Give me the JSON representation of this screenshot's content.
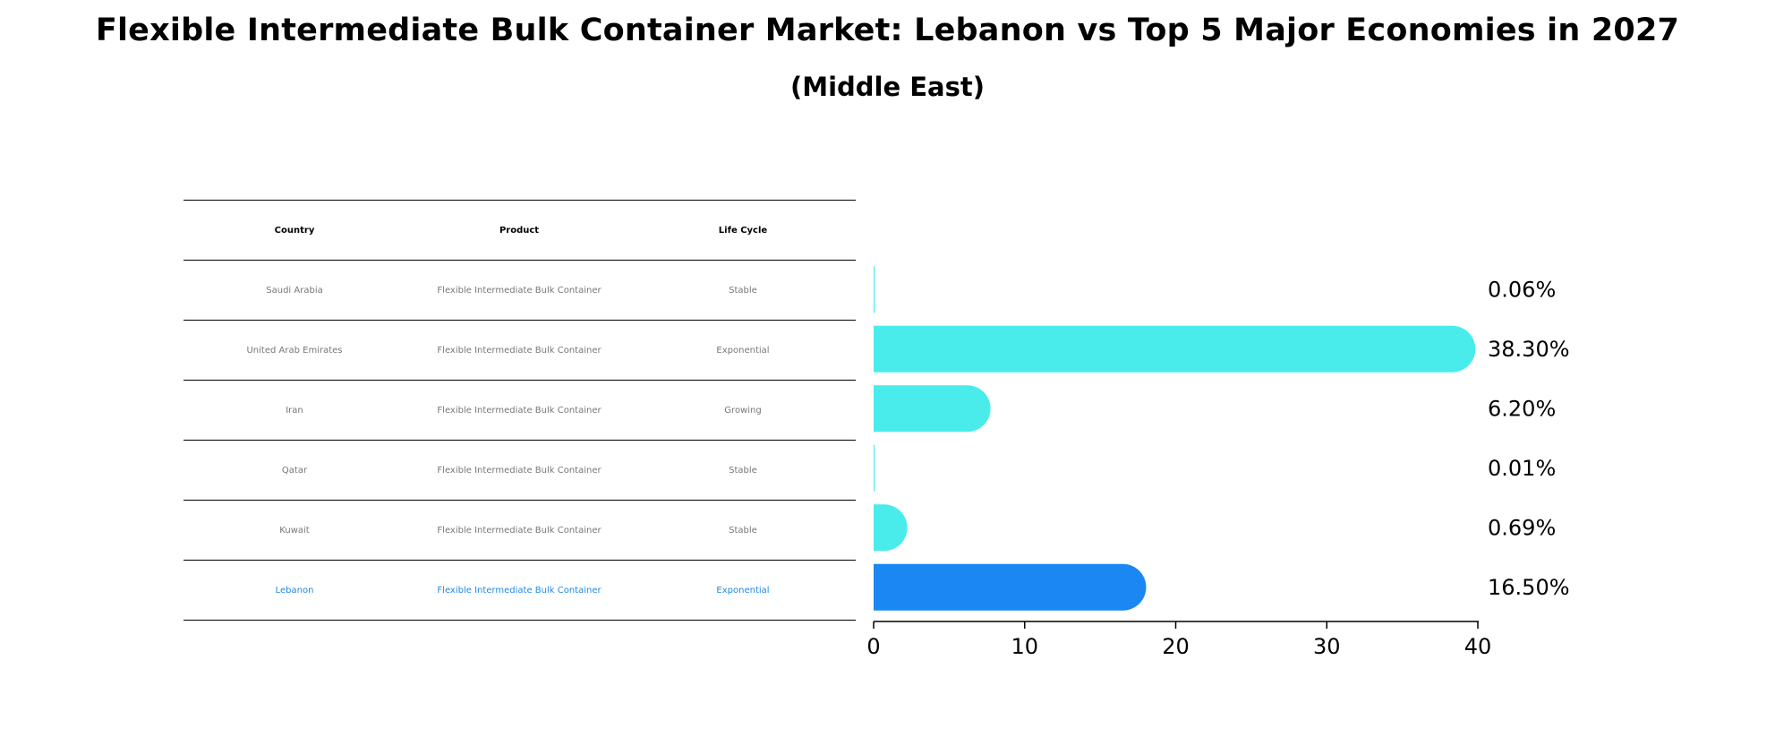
{
  "title": "Flexible Intermediate Bulk Container Market: Lebanon vs Top 5 Major Economies in 2027",
  "subtitle": "(Middle East)",
  "table": {
    "headers": [
      "Country",
      "Product",
      "Life Cycle"
    ],
    "rows": [
      {
        "country": "Saudi Arabia",
        "product": "Flexible Intermediate Bulk Container",
        "life_cycle": "Stable"
      },
      {
        "country": "United Arab Emirates",
        "product": "Flexible Intermediate Bulk Container",
        "life_cycle": "Exponential"
      },
      {
        "country": "Iran",
        "product": "Flexible Intermediate Bulk Container",
        "life_cycle": "Growing"
      },
      {
        "country": "Qatar",
        "product": "Flexible Intermediate Bulk Container",
        "life_cycle": "Stable"
      },
      {
        "country": "Kuwait",
        "product": "Flexible Intermediate Bulk Container",
        "life_cycle": "Stable"
      },
      {
        "country": "Lebanon",
        "product": "Flexible Intermediate Bulk Container",
        "life_cycle": "Exponential"
      }
    ]
  },
  "colors": {
    "bar": "#4aeceb",
    "highlight": "#1a87f2",
    "highlight_text": "#1f8ae6",
    "table_text": "#777777"
  },
  "chart_data": {
    "type": "bar",
    "orientation": "horizontal",
    "categories": [
      "Saudi Arabia",
      "United Arab Emirates",
      "Iran",
      "Qatar",
      "Kuwait",
      "Lebanon"
    ],
    "values": [
      0.06,
      38.3,
      6.2,
      0.01,
      0.69,
      16.5
    ],
    "value_labels": [
      "0.06%",
      "38.30%",
      "6.20%",
      "0.01%",
      "0.69%",
      "16.50%"
    ],
    "highlight_index": 5,
    "xlim": [
      0,
      40
    ],
    "xticks": [
      0,
      10,
      20,
      30,
      40
    ],
    "xlabel": "",
    "ylabel": "",
    "grid": false
  }
}
